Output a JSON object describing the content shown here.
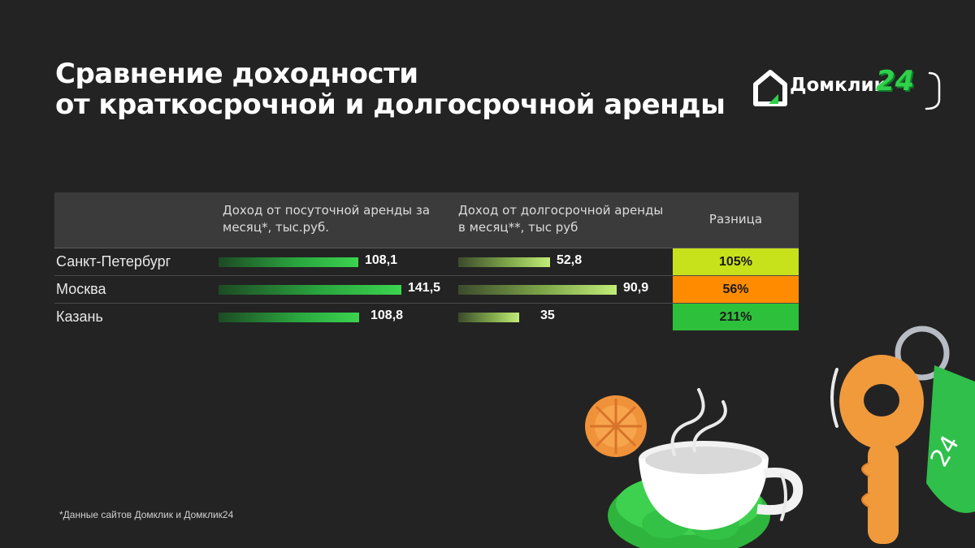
{
  "title": {
    "line1": "Сравнение доходности",
    "line2": "от краткосрочной и долгосрочной аренды"
  },
  "logo": {
    "text": "Домклик",
    "badge": "24"
  },
  "table": {
    "headers": {
      "city": "",
      "daily": "Доход от посуточной аренды за месяц*, тыс.руб.",
      "long": "Доход от долгосрочной аренды в месяц**, тыс руб",
      "diff": "Разница"
    }
  },
  "chart_data": {
    "type": "bar",
    "categories": [
      "Санкт-Петербург",
      "Москва",
      "Казань"
    ],
    "series": [
      {
        "name": "Доход от посуточной аренды за месяц*, тыс.руб.",
        "values": [
          108.1,
          141.5,
          108.8
        ],
        "labels": [
          "108,1",
          "141,5",
          "108,8"
        ]
      },
      {
        "name": "Доход от долгосрочной аренды в месяц**, тыс руб",
        "values": [
          52.8,
          90.9,
          35
        ],
        "labels": [
          "52,8",
          "90,9",
          "35"
        ]
      }
    ],
    "difference": [
      "105%",
      "56%",
      "211%"
    ],
    "difference_colors": [
      "#c7e11a",
      "#ff8c00",
      "#2dc13b"
    ]
  },
  "footnote": "*Данные сайтов Домклик и Домклик24",
  "colors": {
    "background": "#232323",
    "brand_green": "#2fd14a"
  }
}
